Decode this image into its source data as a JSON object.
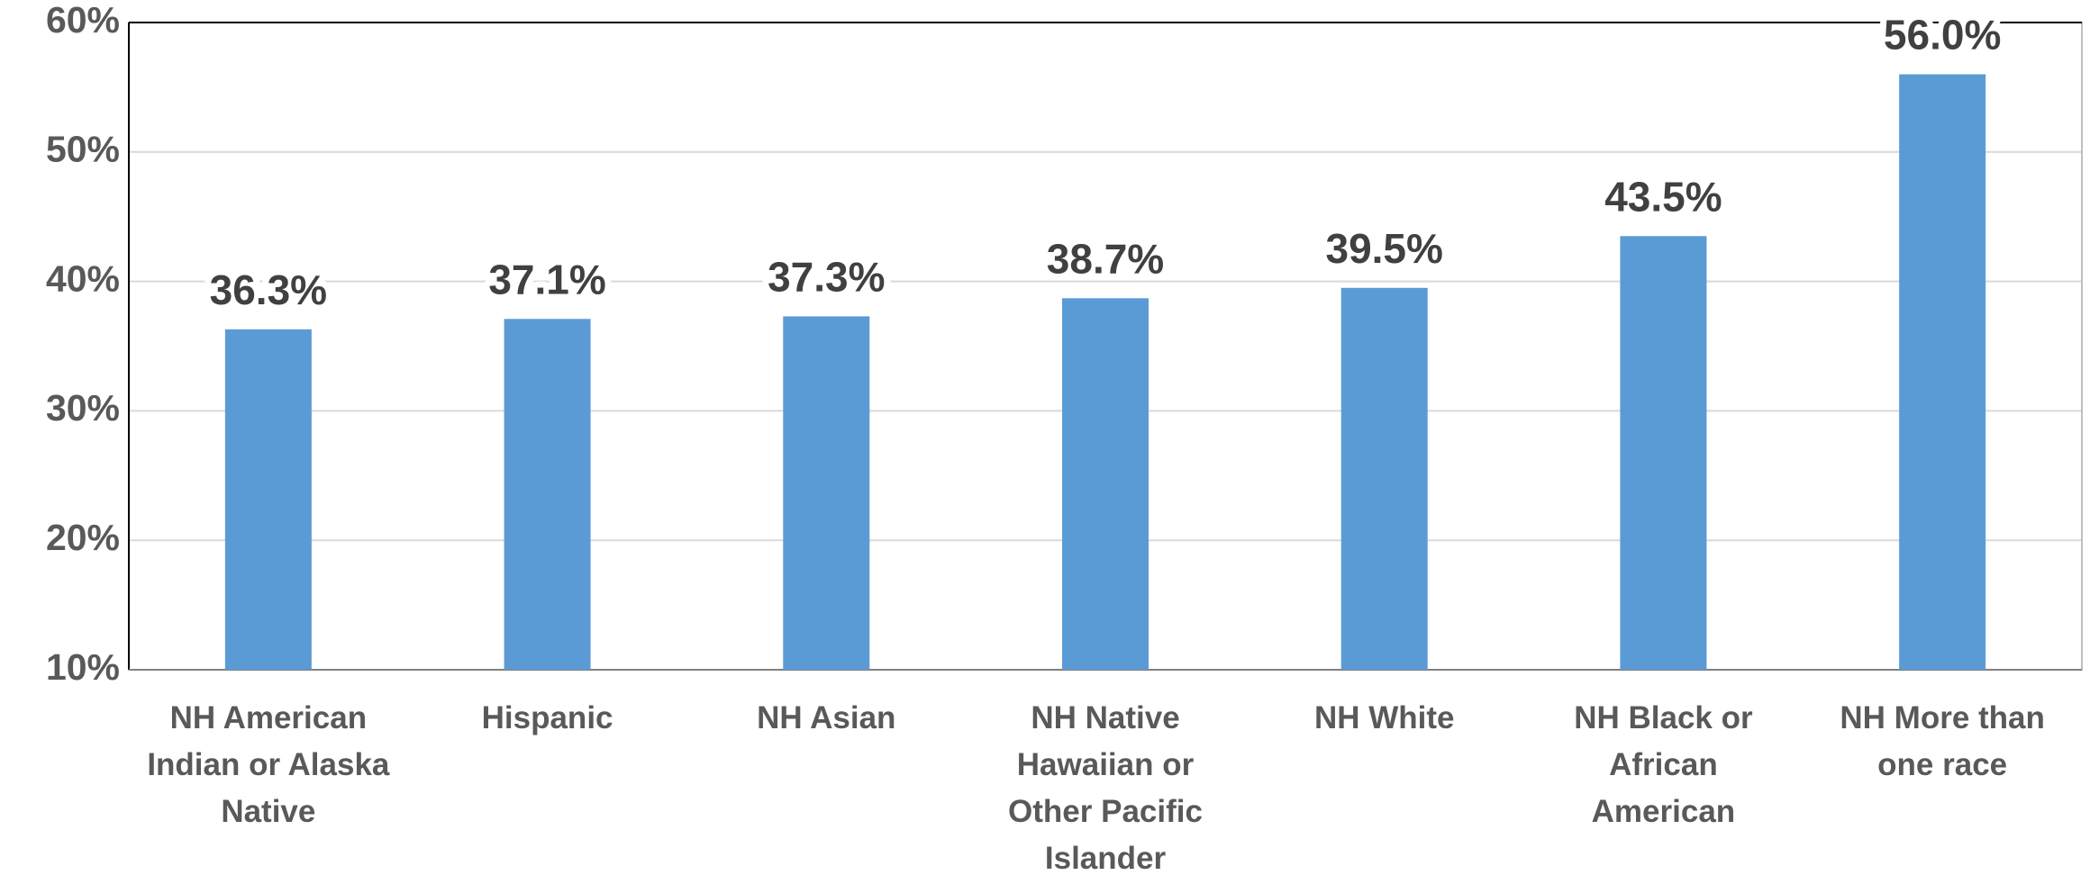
{
  "chart_data": {
    "type": "bar",
    "categories": [
      "NH American Indian or Alaska Native",
      "Hispanic",
      "NH Asian",
      "NH Native Hawaiian or Other Pacific Islander",
      "NH White",
      "NH Black or African American",
      "NH More than one race"
    ],
    "values": [
      36.3,
      37.1,
      37.3,
      38.7,
      39.5,
      43.5,
      56.0
    ],
    "value_labels": [
      "36.3%",
      "37.1%",
      "37.3%",
      "38.7%",
      "39.5%",
      "43.5%",
      "56.0%"
    ],
    "color": "#5b9bd5",
    "ylim": [
      10,
      60
    ],
    "yticks": [
      {
        "value": 10,
        "label": "10%"
      },
      {
        "value": 20,
        "label": "20%"
      },
      {
        "value": 30,
        "label": "30%"
      },
      {
        "value": 40,
        "label": "40%"
      },
      {
        "value": 50,
        "label": "50%"
      },
      {
        "value": 60,
        "label": "60%"
      }
    ],
    "grid": true
  }
}
